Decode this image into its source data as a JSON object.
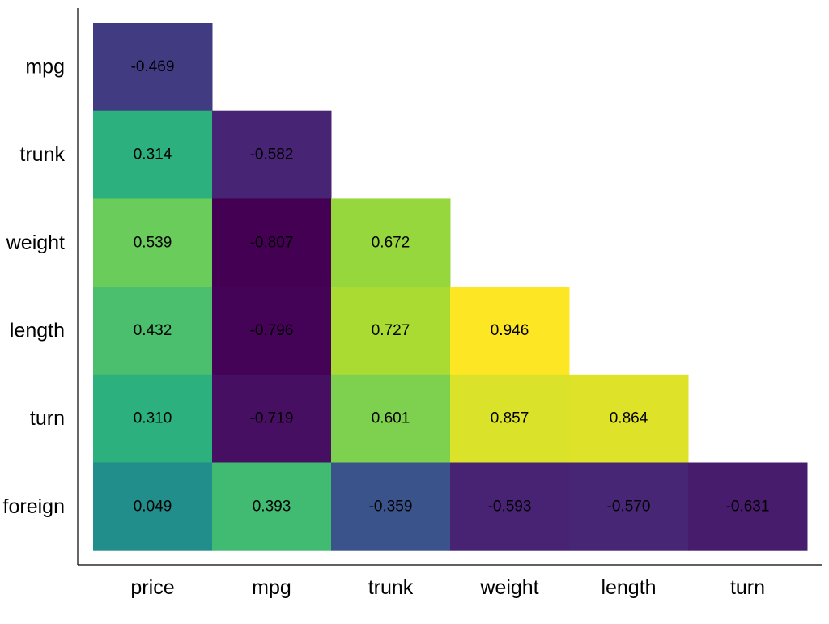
{
  "chart_data": {
    "type": "heatmap",
    "title": "",
    "xlabel": "",
    "ylabel": "",
    "x_categories": [
      "price",
      "mpg",
      "trunk",
      "weight",
      "length",
      "turn"
    ],
    "y_categories": [
      "mpg",
      "trunk",
      "weight",
      "length",
      "turn",
      "foreign"
    ],
    "colormap": "viridis",
    "value_range": [
      -0.807,
      0.946
    ],
    "grid": false,
    "legend": "none",
    "cells": [
      {
        "row": "mpg",
        "col": "price",
        "value": -0.469,
        "label": "-0.469"
      },
      {
        "row": "trunk",
        "col": "price",
        "value": 0.314,
        "label": "0.314"
      },
      {
        "row": "trunk",
        "col": "mpg",
        "value": -0.582,
        "label": "-0.582"
      },
      {
        "row": "weight",
        "col": "price",
        "value": 0.539,
        "label": "0.539"
      },
      {
        "row": "weight",
        "col": "mpg",
        "value": -0.807,
        "label": "-0.807"
      },
      {
        "row": "weight",
        "col": "trunk",
        "value": 0.672,
        "label": "0.672"
      },
      {
        "row": "length",
        "col": "price",
        "value": 0.432,
        "label": "0.432"
      },
      {
        "row": "length",
        "col": "mpg",
        "value": -0.796,
        "label": "-0.796"
      },
      {
        "row": "length",
        "col": "trunk",
        "value": 0.727,
        "label": "0.727"
      },
      {
        "row": "length",
        "col": "weight",
        "value": 0.946,
        "label": "0.946"
      },
      {
        "row": "turn",
        "col": "price",
        "value": 0.31,
        "label": "0.310"
      },
      {
        "row": "turn",
        "col": "mpg",
        "value": -0.719,
        "label": "-0.719"
      },
      {
        "row": "turn",
        "col": "trunk",
        "value": 0.601,
        "label": "0.601"
      },
      {
        "row": "turn",
        "col": "weight",
        "value": 0.857,
        "label": "0.857"
      },
      {
        "row": "turn",
        "col": "length",
        "value": 0.864,
        "label": "0.864"
      },
      {
        "row": "foreign",
        "col": "price",
        "value": 0.049,
        "label": "0.049"
      },
      {
        "row": "foreign",
        "col": "mpg",
        "value": 0.393,
        "label": "0.393"
      },
      {
        "row": "foreign",
        "col": "trunk",
        "value": -0.359,
        "label": "-0.359"
      },
      {
        "row": "foreign",
        "col": "weight",
        "value": -0.593,
        "label": "-0.593"
      },
      {
        "row": "foreign",
        "col": "length",
        "value": -0.57,
        "label": "-0.570"
      },
      {
        "row": "foreign",
        "col": "turn",
        "value": -0.631,
        "label": "-0.631"
      }
    ]
  },
  "colors": {
    "axis": "#000000",
    "text": "#000000",
    "background": "#ffffff"
  }
}
